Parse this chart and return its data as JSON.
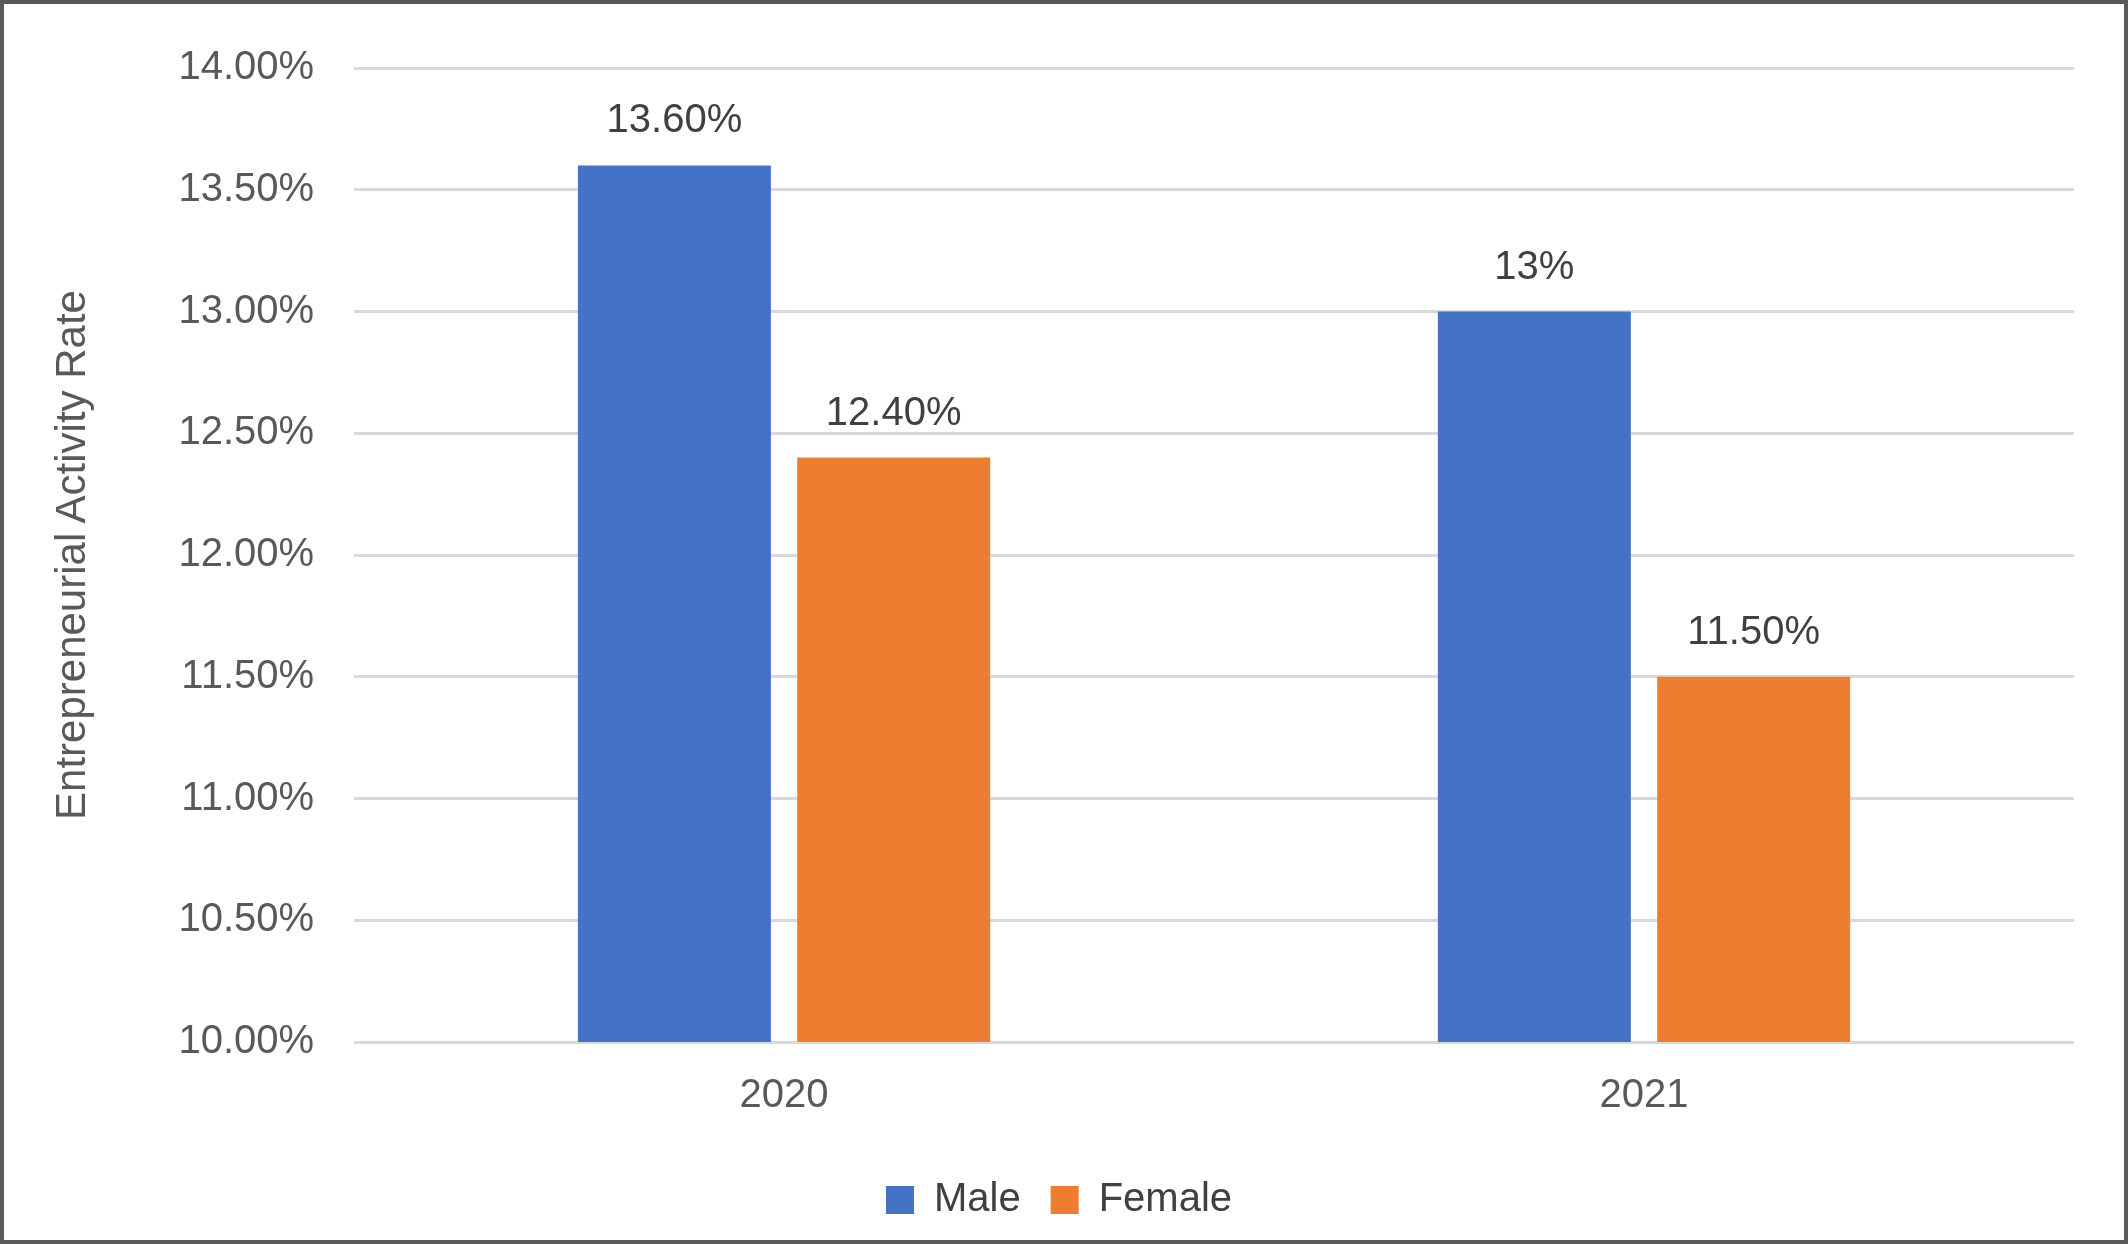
{
  "chart_data": {
    "type": "bar",
    "ylabel": "Entrepreneurial Activity Rate",
    "categories": [
      "2020",
      "2021"
    ],
    "series": [
      {
        "name": "Male",
        "color": "#4472c4",
        "values": [
          13.6,
          13
        ],
        "value_labels": [
          "13.60%",
          "13%"
        ]
      },
      {
        "name": "Female",
        "color": "#ed7d31",
        "values": [
          12.4,
          11.5
        ],
        "value_labels": [
          "12.40%",
          "11.50%"
        ]
      }
    ],
    "ylim": [
      10,
      14
    ],
    "yticks": [
      {
        "value": 10,
        "label": "10.00%"
      },
      {
        "value": 10.5,
        "label": "10.50%"
      },
      {
        "value": 11,
        "label": "11.00%"
      },
      {
        "value": 11.5,
        "label": "11.50%"
      },
      {
        "value": 12,
        "label": "12.00%"
      },
      {
        "value": 12.5,
        "label": "12.50%"
      },
      {
        "value": 13,
        "label": "13.00%"
      },
      {
        "value": 13.5,
        "label": "13.50%"
      },
      {
        "value": 14,
        "label": "14.00%"
      }
    ],
    "grid": "y",
    "legend": "bottom"
  }
}
